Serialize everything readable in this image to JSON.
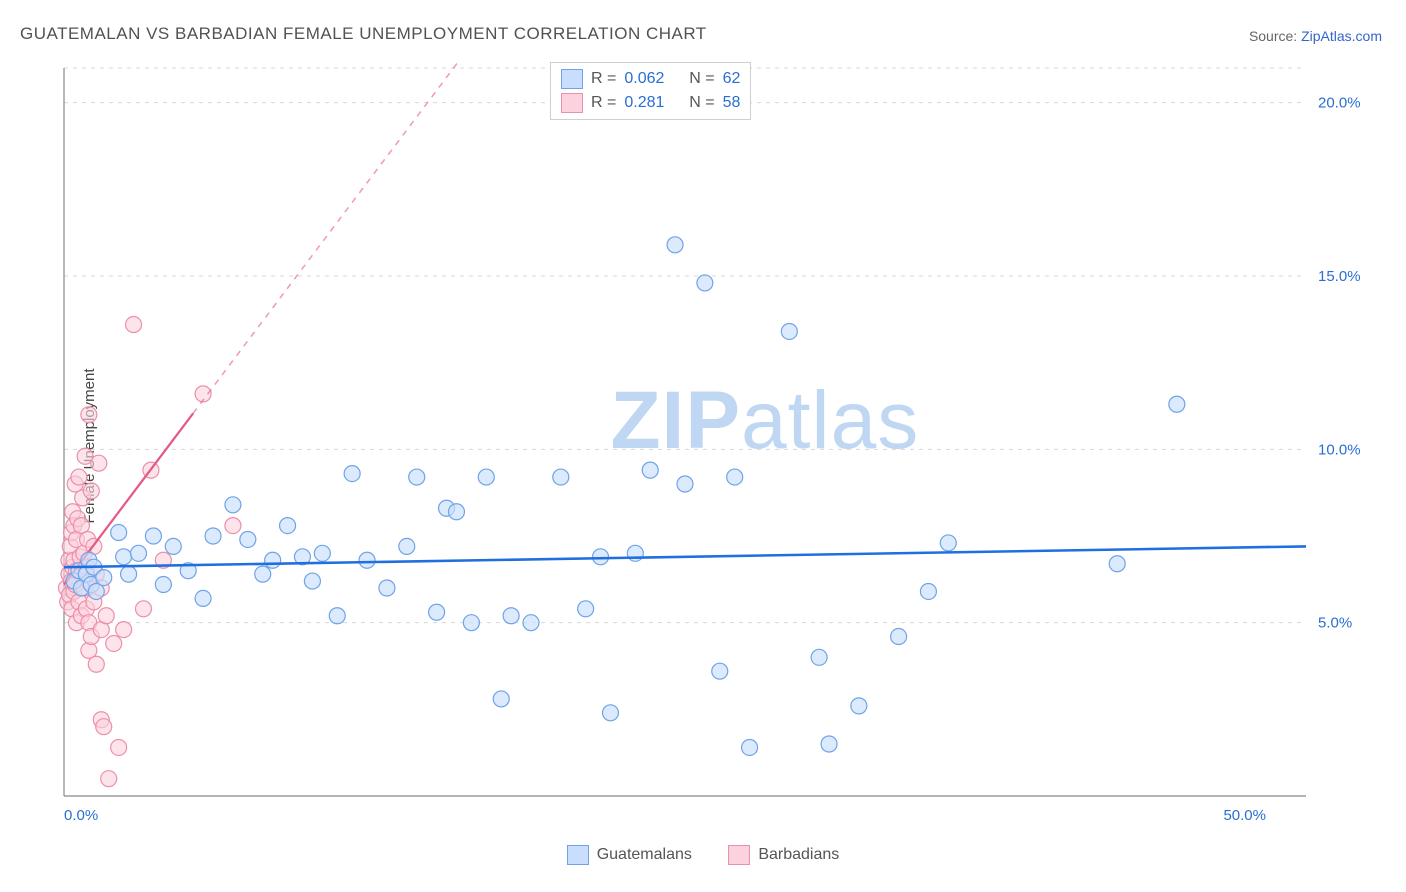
{
  "title": "GUATEMALAN VS BARBADIAN FEMALE UNEMPLOYMENT CORRELATION CHART",
  "source_prefix": "Source: ",
  "source_name": "ZipAtlas.com",
  "y_axis_label": "Female Unemployment",
  "watermark_bold": "ZIP",
  "watermark_rest": "atlas",
  "chart": {
    "type": "scatter",
    "background_color": "#ffffff",
    "grid_color": "#d8d8d8",
    "grid_dash": "4,5",
    "axis_line_color": "#888888",
    "xlim": [
      0,
      50
    ],
    "ylim": [
      0,
      21
    ],
    "x_ticks": [
      {
        "v": 0,
        "label": "0.0%"
      },
      {
        "v": 50,
        "label": "50.0%"
      }
    ],
    "y_ticks": [
      {
        "v": 5,
        "label": "5.0%"
      },
      {
        "v": 10,
        "label": "10.0%"
      },
      {
        "v": 15,
        "label": "15.0%"
      },
      {
        "v": 20,
        "label": "20.0%"
      }
    ],
    "tick_label_color": "#2a6ed4",
    "tick_fontsize": 15,
    "marker_radius": 8,
    "marker_stroke_width": 1.2,
    "series": [
      {
        "id": "guatemalans",
        "label": "Guatemalans",
        "fill": "#c9defc",
        "stroke": "#6fa3e8",
        "fill_opacity": 0.65,
        "trend": {
          "slope": 0.012,
          "intercept": 6.6,
          "color": "#1f6fe0",
          "width": 2.6,
          "dash": null,
          "x_end": 50
        },
        "R": "0.062",
        "N": "62",
        "points": [
          [
            0.4,
            6.2
          ],
          [
            0.6,
            6.5
          ],
          [
            0.7,
            6.0
          ],
          [
            0.9,
            6.4
          ],
          [
            1.0,
            6.8
          ],
          [
            1.1,
            6.1
          ],
          [
            1.2,
            6.6
          ],
          [
            1.3,
            5.9
          ],
          [
            1.6,
            6.3
          ],
          [
            2.2,
            7.6
          ],
          [
            2.4,
            6.9
          ],
          [
            2.6,
            6.4
          ],
          [
            3.0,
            7.0
          ],
          [
            3.6,
            7.5
          ],
          [
            4.0,
            6.1
          ],
          [
            4.4,
            7.2
          ],
          [
            5.0,
            6.5
          ],
          [
            5.6,
            5.7
          ],
          [
            6.0,
            7.5
          ],
          [
            6.8,
            8.4
          ],
          [
            7.4,
            7.4
          ],
          [
            8.0,
            6.4
          ],
          [
            8.4,
            6.8
          ],
          [
            9.0,
            7.8
          ],
          [
            9.6,
            6.9
          ],
          [
            10.0,
            6.2
          ],
          [
            10.4,
            7.0
          ],
          [
            11.0,
            5.2
          ],
          [
            11.6,
            9.3
          ],
          [
            12.2,
            6.8
          ],
          [
            13.0,
            6.0
          ],
          [
            13.8,
            7.2
          ],
          [
            14.2,
            9.2
          ],
          [
            15.0,
            5.3
          ],
          [
            15.4,
            8.3
          ],
          [
            15.8,
            8.2
          ],
          [
            16.4,
            5.0
          ],
          [
            17.0,
            9.2
          ],
          [
            17.6,
            2.8
          ],
          [
            18.0,
            5.2
          ],
          [
            18.8,
            5.0
          ],
          [
            20.0,
            9.2
          ],
          [
            21.0,
            5.4
          ],
          [
            21.6,
            6.9
          ],
          [
            22.0,
            2.4
          ],
          [
            23.0,
            7.0
          ],
          [
            23.6,
            9.4
          ],
          [
            24.6,
            15.9
          ],
          [
            25.0,
            9.0
          ],
          [
            25.8,
            14.8
          ],
          [
            26.4,
            3.6
          ],
          [
            27.0,
            9.2
          ],
          [
            27.6,
            1.4
          ],
          [
            29.2,
            13.4
          ],
          [
            30.4,
            4.0
          ],
          [
            30.8,
            1.5
          ],
          [
            32.0,
            2.6
          ],
          [
            33.6,
            4.6
          ],
          [
            34.8,
            5.9
          ],
          [
            35.6,
            7.3
          ],
          [
            42.4,
            6.7
          ],
          [
            44.8,
            11.3
          ]
        ]
      },
      {
        "id": "barbadians",
        "label": "Barbadians",
        "fill": "#fbd2de",
        "stroke": "#ec8fa9",
        "fill_opacity": 0.6,
        "trend": {
          "slope": 0.95,
          "intercept": 6.1,
          "color": "#e55983",
          "width": 2.2,
          "dash": null,
          "x_end": 5.2,
          "dash_extend": {
            "x_end": 16,
            "dash": "6,6"
          }
        },
        "R": "0.281",
        "N": "58",
        "points": [
          [
            0.1,
            6.0
          ],
          [
            0.15,
            5.6
          ],
          [
            0.2,
            6.4
          ],
          [
            0.2,
            6.8
          ],
          [
            0.22,
            5.8
          ],
          [
            0.25,
            7.2
          ],
          [
            0.3,
            6.2
          ],
          [
            0.3,
            7.6
          ],
          [
            0.32,
            5.4
          ],
          [
            0.35,
            6.6
          ],
          [
            0.35,
            8.2
          ],
          [
            0.4,
            5.9
          ],
          [
            0.4,
            6.8
          ],
          [
            0.4,
            7.8
          ],
          [
            0.45,
            6.1
          ],
          [
            0.45,
            9.0
          ],
          [
            0.5,
            5.0
          ],
          [
            0.5,
            6.5
          ],
          [
            0.5,
            7.4
          ],
          [
            0.55,
            8.0
          ],
          [
            0.6,
            5.6
          ],
          [
            0.6,
            9.2
          ],
          [
            0.65,
            6.9
          ],
          [
            0.7,
            5.2
          ],
          [
            0.7,
            7.8
          ],
          [
            0.75,
            8.6
          ],
          [
            0.8,
            6.0
          ],
          [
            0.8,
            7.0
          ],
          [
            0.85,
            9.8
          ],
          [
            0.9,
            5.4
          ],
          [
            0.9,
            6.6
          ],
          [
            0.95,
            7.4
          ],
          [
            1.0,
            4.2
          ],
          [
            1.0,
            5.0
          ],
          [
            1.0,
            6.2
          ],
          [
            1.0,
            11.0
          ],
          [
            1.1,
            4.6
          ],
          [
            1.1,
            8.8
          ],
          [
            1.2,
            5.6
          ],
          [
            1.2,
            7.2
          ],
          [
            1.3,
            3.8
          ],
          [
            1.3,
            6.4
          ],
          [
            1.4,
            9.6
          ],
          [
            1.5,
            2.2
          ],
          [
            1.5,
            4.8
          ],
          [
            1.5,
            6.0
          ],
          [
            1.6,
            2.0
          ],
          [
            1.7,
            5.2
          ],
          [
            1.8,
            0.5
          ],
          [
            2.0,
            4.4
          ],
          [
            2.2,
            1.4
          ],
          [
            2.4,
            4.8
          ],
          [
            2.8,
            13.6
          ],
          [
            3.2,
            5.4
          ],
          [
            3.5,
            9.4
          ],
          [
            4.0,
            6.8
          ],
          [
            5.6,
            11.6
          ],
          [
            6.8,
            7.8
          ]
        ]
      }
    ],
    "legend_box": {
      "border_color": "#cfcfcf",
      "bg": "#ffffff",
      "text_color": "#555555",
      "value_color": "#2a6ed4",
      "r_label": "R =",
      "n_label": "N ="
    },
    "watermark_color": "#b9d3f1"
  }
}
